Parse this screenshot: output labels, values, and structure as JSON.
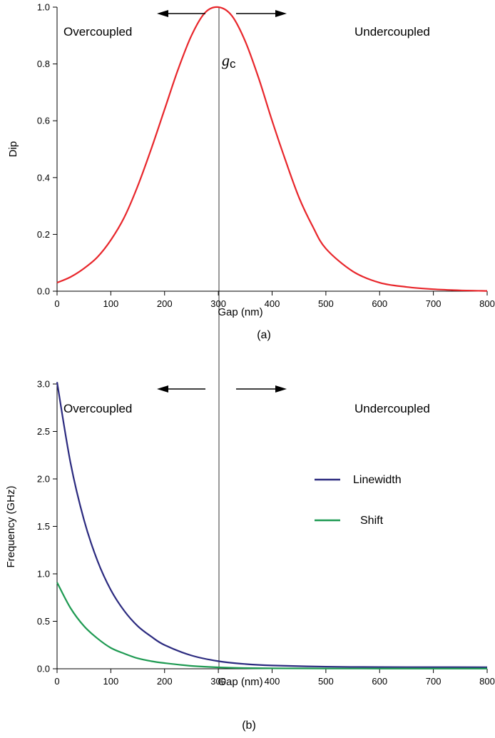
{
  "chart_data": [
    {
      "type": "line",
      "panel": "(a)",
      "xlabel": "Gap (nm)",
      "ylabel": "Dip",
      "xlim": [
        0,
        800
      ],
      "ylim": [
        0,
        1.0
      ],
      "xticks": [
        0,
        100,
        200,
        300,
        400,
        500,
        600,
        700,
        800
      ],
      "yticks": [
        0.0,
        0.2,
        0.4,
        0.6,
        0.8,
        1.0
      ],
      "ytick_labels": [
        "0.0",
        "0.2",
        "0.4",
        "0.6",
        "0.8",
        "1.0"
      ],
      "grid": false,
      "annotations": {
        "left_region": "Overcoupled",
        "right_region": "Undercoupled",
        "critical_gap_symbol": "g",
        "critical_gap_subscript": "c",
        "critical_gap_value": 300
      },
      "series": [
        {
          "color": "#e8262b",
          "x": [
            0,
            25,
            50,
            75,
            100,
            125,
            150,
            175,
            200,
            225,
            250,
            275,
            300,
            325,
            350,
            375,
            400,
            425,
            450,
            475,
            500,
            550,
            600,
            650,
            700,
            750,
            800
          ],
          "y": [
            0.03,
            0.05,
            0.08,
            0.12,
            0.18,
            0.26,
            0.37,
            0.5,
            0.64,
            0.78,
            0.9,
            0.98,
            1.0,
            0.97,
            0.88,
            0.75,
            0.6,
            0.46,
            0.33,
            0.23,
            0.15,
            0.07,
            0.03,
            0.015,
            0.007,
            0.003,
            0.001
          ]
        }
      ]
    },
    {
      "type": "line",
      "panel": "(b)",
      "xlabel": "Gap (nm)",
      "ylabel": "Frequency (GHz)",
      "xlim": [
        0,
        800
      ],
      "ylim": [
        0,
        3.0
      ],
      "xticks": [
        0,
        100,
        200,
        300,
        400,
        500,
        600,
        700,
        800
      ],
      "yticks": [
        0.0,
        0.5,
        1.0,
        1.5,
        2.0,
        2.5,
        3.0
      ],
      "ytick_labels": [
        "0.0",
        "0.5",
        "1.0",
        "1.5",
        "2.0",
        "2.5",
        "3.0"
      ],
      "grid": false,
      "legend_position": "center-right",
      "annotations": {
        "left_region": "Overcoupled",
        "right_region": "Undercoupled",
        "critical_gap_value": 300
      },
      "series": [
        {
          "name": "Linewidth",
          "color": "#2b2a7f",
          "x": [
            0,
            25,
            50,
            75,
            100,
            125,
            150,
            175,
            200,
            250,
            300,
            350,
            400,
            500,
            600,
            700,
            800
          ],
          "y": [
            3.02,
            2.17,
            1.57,
            1.14,
            0.83,
            0.61,
            0.45,
            0.34,
            0.25,
            0.14,
            0.08,
            0.05,
            0.035,
            0.022,
            0.018,
            0.017,
            0.016
          ]
        },
        {
          "name": "Shift",
          "color": "#1e9a52",
          "x": [
            0,
            25,
            50,
            75,
            100,
            125,
            150,
            175,
            200,
            250,
            300,
            350,
            400,
            500,
            600,
            700,
            800
          ],
          "y": [
            0.91,
            0.64,
            0.45,
            0.32,
            0.22,
            0.16,
            0.11,
            0.08,
            0.06,
            0.03,
            0.015,
            0.008,
            0.005,
            0.003,
            0.002,
            0.002,
            0.002
          ]
        }
      ]
    }
  ]
}
